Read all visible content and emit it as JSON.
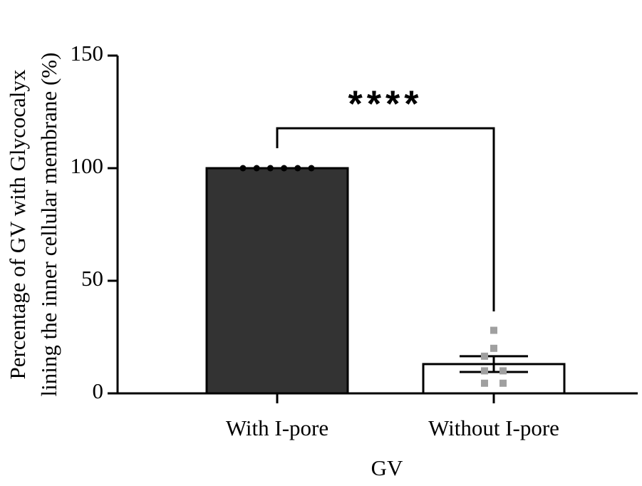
{
  "chart_data": {
    "type": "bar",
    "y_label": [
      "Percentage of GV with Glycocalyx",
      "lining the inner cellular membrane (%)"
    ],
    "x_label": "GV",
    "categories": [
      "With I-pore",
      "Without I-pore"
    ],
    "values": [
      100,
      13
    ],
    "errors": [
      0,
      3.5
    ],
    "points": [
      [
        100,
        100,
        100,
        100,
        100,
        100
      ],
      [
        28,
        20,
        16.5,
        10,
        10,
        4.5,
        4.5
      ]
    ],
    "colors": [
      "#333333",
      "#ffffff"
    ],
    "point_colors": [
      "#000000",
      "#a0a0a0"
    ],
    "annotation": "****",
    "ylim": [
      0,
      150
    ],
    "yticks": [
      0,
      50,
      100,
      150
    ]
  }
}
